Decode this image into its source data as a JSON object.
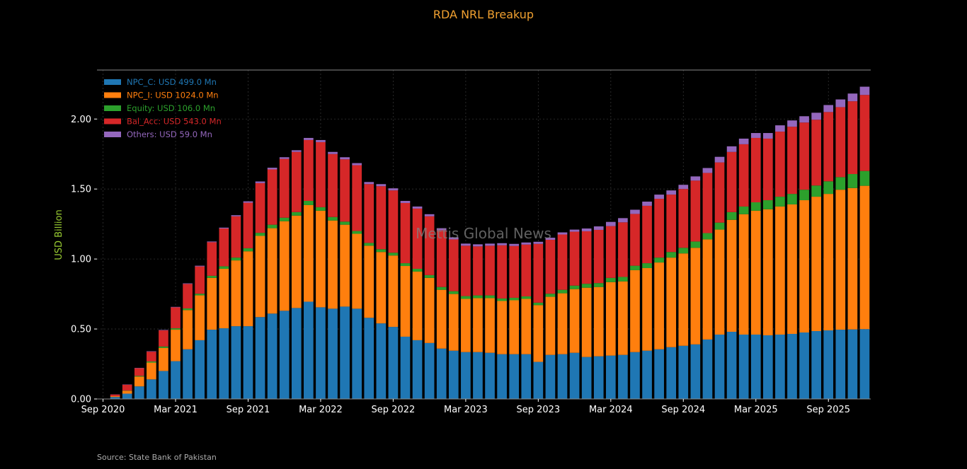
{
  "chart_data": {
    "type": "bar",
    "stacked": true,
    "title": "RDA NRL Breakup",
    "ylabel": "USD Billion",
    "ylabel_color": "#9acd32",
    "ylim": [
      0,
      2.35
    ],
    "yticks": [
      "0.00",
      "0.50",
      "1.00",
      "1.50",
      "2.00"
    ],
    "ytick_values": [
      0,
      0.5,
      1.0,
      1.5,
      2.0
    ],
    "xticks": [
      "Sep 2020",
      "Mar 2021",
      "Sep 2021",
      "Mar 2022",
      "Sep 2022",
      "Mar 2023",
      "Sep 2023",
      "Mar 2024",
      "Sep 2024",
      "Mar 2025",
      "Sep 2025"
    ],
    "xtick_indices": [
      0,
      6,
      12,
      18,
      24,
      30,
      36,
      42,
      48,
      54,
      60
    ],
    "grid": true,
    "legend_position": "top-left",
    "watermark": "Mettis Global News",
    "source": "Source: State Bank of Pakistan",
    "categories": [
      "Sep 2020",
      "Oct 2020",
      "Nov 2020",
      "Dec 2020",
      "Jan 2021",
      "Feb 2021",
      "Mar 2021",
      "Apr 2021",
      "May 2021",
      "Jun 2021",
      "Jul 2021",
      "Aug 2021",
      "Sep 2021",
      "Oct 2021",
      "Nov 2021",
      "Dec 2021",
      "Jan 2022",
      "Feb 2022",
      "Mar 2022",
      "Apr 2022",
      "May 2022",
      "Jun 2022",
      "Jul 2022",
      "Aug 2022",
      "Sep 2022",
      "Oct 2022",
      "Nov 2022",
      "Dec 2022",
      "Jan 2023",
      "Feb 2023",
      "Mar 2023",
      "Apr 2023",
      "May 2023",
      "Jun 2023",
      "Jul 2023",
      "Aug 2023",
      "Sep 2023",
      "Oct 2023",
      "Nov 2023",
      "Dec 2023",
      "Jan 2024",
      "Feb 2024",
      "Mar 2024",
      "Apr 2024",
      "May 2024",
      "Jun 2024",
      "Jul 2024",
      "Aug 2024",
      "Sep 2024",
      "Oct 2024",
      "Nov 2024",
      "Dec 2024",
      "Jan 2025",
      "Feb 2025",
      "Mar 2025",
      "Apr 2025",
      "May 2025",
      "Jun 2025",
      "Jul 2025",
      "Aug 2025",
      "Sep 2025",
      "Oct 2025",
      "Nov 2025",
      "Dec 2025"
    ],
    "series": [
      {
        "name": "NPC_C: USD 499.0 Mn",
        "color": "#1f77b4",
        "values": [
          0.002,
          0.014,
          0.038,
          0.09,
          0.14,
          0.2,
          0.27,
          0.355,
          0.42,
          0.495,
          0.505,
          0.52,
          0.52,
          0.585,
          0.61,
          0.63,
          0.65,
          0.695,
          0.655,
          0.645,
          0.66,
          0.645,
          0.58,
          0.54,
          0.515,
          0.445,
          0.42,
          0.4,
          0.36,
          0.345,
          0.335,
          0.335,
          0.33,
          0.32,
          0.32,
          0.32,
          0.265,
          0.315,
          0.32,
          0.33,
          0.3,
          0.305,
          0.31,
          0.315,
          0.335,
          0.345,
          0.355,
          0.37,
          0.38,
          0.39,
          0.425,
          0.46,
          0.48,
          0.46,
          0.46,
          0.455,
          0.46,
          0.465,
          0.475,
          0.485,
          0.49,
          0.495,
          0.497,
          0.499
        ]
      },
      {
        "name": "NPC_I: USD 1024.0 Mn",
        "color": "#ff7f0e",
        "values": [
          0.0,
          0.006,
          0.02,
          0.07,
          0.12,
          0.165,
          0.225,
          0.28,
          0.32,
          0.37,
          0.425,
          0.47,
          0.535,
          0.58,
          0.61,
          0.64,
          0.66,
          0.69,
          0.69,
          0.63,
          0.585,
          0.535,
          0.515,
          0.51,
          0.51,
          0.505,
          0.49,
          0.465,
          0.42,
          0.405,
          0.38,
          0.385,
          0.39,
          0.38,
          0.385,
          0.395,
          0.405,
          0.415,
          0.435,
          0.455,
          0.495,
          0.495,
          0.525,
          0.525,
          0.585,
          0.59,
          0.62,
          0.64,
          0.66,
          0.69,
          0.715,
          0.75,
          0.8,
          0.86,
          0.885,
          0.9,
          0.915,
          0.925,
          0.945,
          0.96,
          0.975,
          1.0,
          1.01,
          1.024
        ]
      },
      {
        "name": "Equity: USD 106.0 Mn",
        "color": "#2ca02c",
        "values": [
          0.0,
          0.0,
          0.002,
          0.005,
          0.008,
          0.01,
          0.01,
          0.012,
          0.012,
          0.015,
          0.018,
          0.02,
          0.022,
          0.022,
          0.025,
          0.025,
          0.025,
          0.03,
          0.025,
          0.025,
          0.022,
          0.02,
          0.02,
          0.02,
          0.02,
          0.02,
          0.02,
          0.02,
          0.02,
          0.02,
          0.02,
          0.02,
          0.02,
          0.018,
          0.018,
          0.018,
          0.018,
          0.022,
          0.025,
          0.025,
          0.028,
          0.028,
          0.03,
          0.032,
          0.032,
          0.035,
          0.035,
          0.04,
          0.04,
          0.045,
          0.045,
          0.05,
          0.055,
          0.055,
          0.06,
          0.065,
          0.07,
          0.075,
          0.075,
          0.08,
          0.09,
          0.09,
          0.1,
          0.106
        ]
      },
      {
        "name": "Bal_Acc: USD 543.0 Mn",
        "color": "#d62728",
        "values": [
          0.0,
          0.012,
          0.042,
          0.055,
          0.07,
          0.115,
          0.15,
          0.175,
          0.195,
          0.24,
          0.27,
          0.295,
          0.325,
          0.355,
          0.395,
          0.42,
          0.43,
          0.435,
          0.465,
          0.45,
          0.445,
          0.47,
          0.42,
          0.45,
          0.445,
          0.43,
          0.43,
          0.42,
          0.405,
          0.37,
          0.36,
          0.35,
          0.355,
          0.38,
          0.37,
          0.37,
          0.42,
          0.385,
          0.395,
          0.385,
          0.375,
          0.38,
          0.37,
          0.39,
          0.37,
          0.41,
          0.42,
          0.41,
          0.42,
          0.435,
          0.43,
          0.43,
          0.43,
          0.445,
          0.46,
          0.44,
          0.465,
          0.48,
          0.48,
          0.47,
          0.495,
          0.5,
          0.52,
          0.543
        ]
      },
      {
        "name": "Others: USD 59.0 Mn",
        "color": "#9467bd",
        "values": [
          0.0,
          0.001,
          0.002,
          0.002,
          0.003,
          0.003,
          0.003,
          0.004,
          0.005,
          0.005,
          0.006,
          0.008,
          0.01,
          0.012,
          0.012,
          0.012,
          0.012,
          0.015,
          0.015,
          0.015,
          0.015,
          0.015,
          0.015,
          0.015,
          0.015,
          0.015,
          0.015,
          0.015,
          0.015,
          0.015,
          0.015,
          0.015,
          0.015,
          0.015,
          0.015,
          0.015,
          0.015,
          0.015,
          0.015,
          0.015,
          0.02,
          0.025,
          0.03,
          0.03,
          0.03,
          0.03,
          0.03,
          0.03,
          0.03,
          0.03,
          0.035,
          0.04,
          0.04,
          0.04,
          0.035,
          0.04,
          0.045,
          0.045,
          0.045,
          0.05,
          0.05,
          0.055,
          0.055,
          0.059
        ]
      }
    ]
  }
}
